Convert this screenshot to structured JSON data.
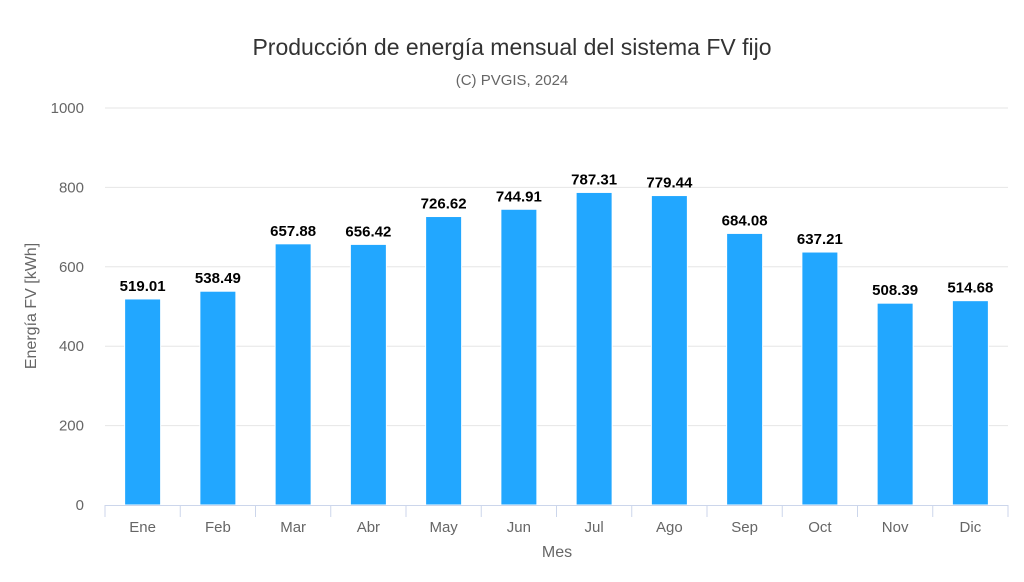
{
  "chart_data": {
    "type": "bar",
    "title": "Producción de energía mensual del sistema FV fijo",
    "subtitle": "(C) PVGIS, 2024",
    "xlabel": "Mes",
    "ylabel": "Energía FV [kWh]",
    "categories": [
      "Ene",
      "Feb",
      "Mar",
      "Abr",
      "May",
      "Jun",
      "Jul",
      "Ago",
      "Sep",
      "Oct",
      "Nov",
      "Dic"
    ],
    "values": [
      519.01,
      538.49,
      657.88,
      656.42,
      726.62,
      744.91,
      787.31,
      779.44,
      684.08,
      637.21,
      508.39,
      514.68
    ],
    "ylim": [
      0,
      1000
    ],
    "yticks": [
      0,
      200,
      400,
      600,
      800,
      1000
    ],
    "grid": true,
    "legend": "none",
    "colors": {
      "bar": "#22a7ff",
      "grid": "#e6e6e6",
      "axis": "#ccd6eb"
    }
  }
}
